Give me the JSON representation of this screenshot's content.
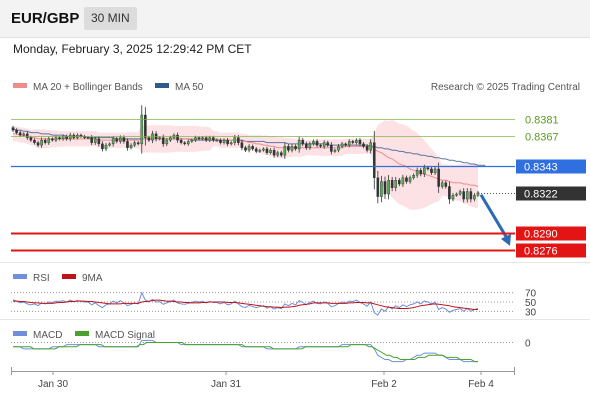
{
  "header": {
    "symbol": "EUR/GBP",
    "timeframe": "30 MIN"
  },
  "timestamp": "Monday, February 3, 2025 12:29:42 PM CET",
  "attribution": "Research © 2025 Trading Central",
  "colors": {
    "ma20": "#f08c8c",
    "bollinger_fill": "#fbd7dc",
    "ma50": "#2e5a8f",
    "up": "#2a2a2a",
    "down": "#2a2a2a",
    "green": "#7cb342",
    "blue_level": "#2f6fe0",
    "red_level": "#e31414",
    "current": "#333333",
    "arrow": "#2c6ab4",
    "rsi": "#6f90d8",
    "rsi_ma": "#c0121a",
    "macd": "#6f90d8",
    "macd_signal": "#4aa12f"
  },
  "chart_data": [
    {
      "type": "candlestick",
      "legend": [
        {
          "name": "MA 20 + Bollinger Bands",
          "color": "#f08c8c"
        },
        {
          "name": "MA 50",
          "color": "#2e5a8f"
        }
      ],
      "ylim": [
        0.827,
        0.8396
      ],
      "x_ticks": [
        "Jan 30",
        "Jan 31",
        "Feb 2",
        "Feb 4"
      ],
      "levels": [
        {
          "value": 0.8381,
          "label": "0.8381",
          "kind": "resistance",
          "color": "#7cb342"
        },
        {
          "value": 0.8367,
          "label": "0.8367",
          "kind": "resistance",
          "color": "#7cb342"
        },
        {
          "value": 0.8343,
          "label": "0.8343",
          "kind": "pivot",
          "color": "#2f6fe0"
        },
        {
          "value": 0.8322,
          "label": "0.8322",
          "kind": "current",
          "color": "#333333"
        },
        {
          "value": 0.829,
          "label": "0.8290",
          "kind": "support",
          "color": "#e31414"
        },
        {
          "value": 0.8276,
          "label": "0.8276",
          "kind": "support",
          "color": "#e31414"
        }
      ],
      "candles_close": [
        0.8372,
        0.837,
        0.8368,
        0.8369,
        0.8366,
        0.8364,
        0.8362,
        0.836,
        0.8364,
        0.8362,
        0.8365,
        0.8364,
        0.8366,
        0.8365,
        0.8367,
        0.8365,
        0.8368,
        0.8366,
        0.8368,
        0.8367,
        0.8366,
        0.8366,
        0.8362,
        0.8365,
        0.8361,
        0.8357,
        0.836,
        0.8361,
        0.8365,
        0.8363,
        0.8366,
        0.8363,
        0.8358,
        0.836,
        0.8362,
        0.8361,
        0.8384,
        0.8366,
        0.8364,
        0.8369,
        0.8365,
        0.8366,
        0.8361,
        0.8364,
        0.8366,
        0.8368,
        0.8364,
        0.8362,
        0.8361,
        0.8363,
        0.8364,
        0.8366,
        0.8365,
        0.8366,
        0.8364,
        0.8366,
        0.8364,
        0.8364,
        0.8362,
        0.8364,
        0.8361,
        0.8362,
        0.8366,
        0.8362,
        0.8358,
        0.8356,
        0.8359,
        0.8357,
        0.8355,
        0.8356,
        0.8357,
        0.8354,
        0.8356,
        0.8352,
        0.8354,
        0.8352,
        0.8359,
        0.8356,
        0.8359,
        0.8357,
        0.8364,
        0.8361,
        0.8358,
        0.8361,
        0.8363,
        0.836,
        0.8359,
        0.8362,
        0.836,
        0.8355,
        0.8356,
        0.8359,
        0.8361,
        0.836,
        0.8363,
        0.8362,
        0.8364,
        0.8361,
        0.8359,
        0.8356,
        0.8362,
        0.8334,
        0.8319,
        0.8331,
        0.8321,
        0.8332,
        0.8326,
        0.8332,
        0.8329,
        0.8334,
        0.8331,
        0.8334,
        0.8336,
        0.834,
        0.8337,
        0.8342,
        0.8341,
        0.8338,
        0.8341,
        0.8327,
        0.833,
        0.8327,
        0.8317,
        0.832,
        0.8321,
        0.8323,
        0.8317,
        0.8323,
        0.8317,
        0.832,
        0.8322
      ],
      "ma20": [
        0.8369,
        0.8369,
        0.8368,
        0.8368,
        0.8367,
        0.8366,
        0.8366,
        0.8365,
        0.8365,
        0.8365,
        0.8365,
        0.8365,
        0.8365,
        0.8365,
        0.8365,
        0.8365,
        0.8365,
        0.8365,
        0.8365,
        0.8365,
        0.8365,
        0.8365,
        0.8365,
        0.8365,
        0.8364,
        0.8364,
        0.8364,
        0.8364,
        0.8364,
        0.8364,
        0.8364,
        0.8364,
        0.8364,
        0.8364,
        0.8364,
        0.8364,
        0.8365,
        0.8365,
        0.8365,
        0.8365,
        0.8365,
        0.8365,
        0.8365,
        0.8365,
        0.8365,
        0.8365,
        0.8365,
        0.8365,
        0.8365,
        0.8365,
        0.8365,
        0.8365,
        0.8365,
        0.8365,
        0.8365,
        0.8365,
        0.8365,
        0.8365,
        0.8364,
        0.8364,
        0.8364,
        0.8364,
        0.8364,
        0.8364,
        0.8363,
        0.8363,
        0.8362,
        0.8362,
        0.8361,
        0.8361,
        0.836,
        0.836,
        0.8359,
        0.8359,
        0.8358,
        0.8358,
        0.8358,
        0.8358,
        0.8358,
        0.8358,
        0.8358,
        0.8358,
        0.8358,
        0.8358,
        0.8358,
        0.8358,
        0.8358,
        0.8358,
        0.8358,
        0.8358,
        0.8358,
        0.8358,
        0.8358,
        0.8359,
        0.8359,
        0.8359,
        0.8359,
        0.8359,
        0.8359,
        0.8359,
        0.8359,
        0.8357,
        0.8355,
        0.8354,
        0.8352,
        0.835,
        0.8349,
        0.8347,
        0.8345,
        0.8344,
        0.8343,
        0.8341,
        0.834,
        0.8339,
        0.8338,
        0.8337,
        0.8336,
        0.8335,
        0.8334,
        0.8333,
        0.8332,
        0.8332,
        0.8331,
        0.833,
        0.833,
        0.833,
        0.8329,
        0.8329,
        0.8328,
        0.8328,
        0.8327
      ],
      "ma50": [
        0.8373,
        0.8372,
        0.8372,
        0.8371,
        0.8371,
        0.837,
        0.837,
        0.837,
        0.8369,
        0.8369,
        0.8369,
        0.8368,
        0.8368,
        0.8368,
        0.8368,
        0.8367,
        0.8367,
        0.8367,
        0.8367,
        0.8367,
        0.8367,
        0.8366,
        0.8366,
        0.8366,
        0.8366,
        0.8366,
        0.8366,
        0.8366,
        0.8366,
        0.8365,
        0.8365,
        0.8365,
        0.8365,
        0.8365,
        0.8365,
        0.8365,
        0.8365,
        0.8365,
        0.8365,
        0.8365,
        0.8365,
        0.8365,
        0.8365,
        0.8365,
        0.8365,
        0.8365,
        0.8365,
        0.8365,
        0.8365,
        0.8365,
        0.8364,
        0.8364,
        0.8364,
        0.8364,
        0.8364,
        0.8364,
        0.8364,
        0.8364,
        0.8364,
        0.8364,
        0.8364,
        0.8364,
        0.8364,
        0.8364,
        0.8364,
        0.8363,
        0.8363,
        0.8363,
        0.8363,
        0.8363,
        0.8363,
        0.8362,
        0.8362,
        0.8362,
        0.8362,
        0.8362,
        0.8362,
        0.8361,
        0.8361,
        0.8361,
        0.8361,
        0.8361,
        0.8361,
        0.8361,
        0.8361,
        0.8361,
        0.8361,
        0.8361,
        0.836,
        0.836,
        0.836,
        0.836,
        0.836,
        0.836,
        0.836,
        0.836,
        0.836,
        0.836,
        0.836,
        0.836,
        0.8359,
        0.8359,
        0.8358,
        0.8358,
        0.8357,
        0.8357,
        0.8356,
        0.8356,
        0.8355,
        0.8355,
        0.8354,
        0.8354,
        0.8353,
        0.8353,
        0.8352,
        0.8352,
        0.8351,
        0.8351,
        0.835,
        0.835,
        0.8349,
        0.8349,
        0.8348,
        0.8348,
        0.8347,
        0.8347,
        0.8346,
        0.8346,
        0.8345,
        0.8345,
        0.8344,
        0.8344,
        0.8344
      ]
    },
    {
      "type": "line",
      "name": "RSI panel",
      "legend": [
        {
          "name": "RSI",
          "color": "#6f90d8"
        },
        {
          "name": "9MA",
          "color": "#c0121a"
        }
      ],
      "ylim": [
        20,
        80
      ],
      "y_ticks": [
        70,
        50,
        30
      ],
      "series": [
        {
          "name": "RSI",
          "values": [
            55,
            52,
            48,
            50,
            46,
            44,
            46,
            42,
            48,
            46,
            50,
            49,
            52,
            51,
            53,
            50,
            54,
            51,
            53,
            52,
            50,
            50,
            44,
            48,
            42,
            38,
            44,
            46,
            52,
            48,
            53,
            48,
            42,
            45,
            48,
            46,
            70,
            54,
            50,
            56,
            50,
            51,
            45,
            48,
            51,
            54,
            48,
            46,
            45,
            47,
            49,
            52,
            50,
            52,
            48,
            51,
            49,
            49,
            46,
            49,
            44,
            46,
            52,
            46,
            40,
            38,
            43,
            40,
            38,
            40,
            42,
            37,
            40,
            35,
            38,
            36,
            46,
            42,
            47,
            44,
            53,
            49,
            44,
            49,
            52,
            47,
            46,
            50,
            47,
            40,
            42,
            47,
            50,
            48,
            52,
            51,
            54,
            49,
            46,
            41,
            50,
            27,
            22,
            35,
            30,
            40,
            35,
            42,
            38,
            44,
            40,
            44,
            46,
            50,
            46,
            52,
            50,
            46,
            50,
            34,
            38,
            35,
            28,
            32,
            34,
            36,
            30,
            36,
            30,
            34,
            36
          ]
        },
        {
          "name": "9MA",
          "values": [
            52,
            52,
            51,
            51,
            50,
            49,
            48,
            48,
            47,
            47,
            47,
            47,
            48,
            49,
            49,
            50,
            51,
            51,
            52,
            52,
            52,
            51,
            51,
            50,
            49,
            48,
            47,
            46,
            46,
            46,
            46,
            47,
            47,
            47,
            47,
            47,
            50,
            51,
            52,
            53,
            54,
            54,
            53,
            52,
            52,
            51,
            50,
            50,
            49,
            49,
            48,
            48,
            48,
            49,
            49,
            50,
            50,
            50,
            50,
            50,
            49,
            49,
            49,
            48,
            47,
            46,
            45,
            44,
            43,
            42,
            41,
            40,
            40,
            39,
            39,
            38,
            39,
            39,
            40,
            41,
            43,
            44,
            45,
            46,
            48,
            48,
            48,
            48,
            48,
            47,
            47,
            47,
            47,
            47,
            48,
            48,
            49,
            49,
            49,
            48,
            48,
            46,
            44,
            42,
            40,
            39,
            38,
            37,
            36,
            36,
            36,
            37,
            38,
            40,
            42,
            43,
            44,
            45,
            46,
            45,
            44,
            43,
            42,
            40,
            39,
            38,
            37,
            36,
            35,
            34,
            34
          ]
        }
      ]
    },
    {
      "type": "line",
      "name": "MACD panel",
      "legend": [
        {
          "name": "MACD",
          "color": "#6f90d8"
        },
        {
          "name": "MACD Signal",
          "color": "#4aa12f"
        }
      ],
      "ylim": [
        -0.0012,
        0.0004
      ],
      "y_ticks": [
        0
      ],
      "y_tick_labels": [
        "0"
      ],
      "series": [
        {
          "name": "MACD",
          "values": [
            -0.0002,
            -0.0002,
            -0.0002,
            -0.0003,
            -0.0003,
            -0.0003,
            -0.0003,
            -0.0003,
            -0.0003,
            -0.0003,
            -0.0003,
            -0.0002,
            -0.0002,
            -0.0002,
            -0.0002,
            -0.0001,
            -0.0001,
            -0.0001,
            -0.0001,
            -0.0001,
            -0.0001,
            -0.0001,
            -0.0001,
            -0.0001,
            -0.0002,
            -0.0002,
            -0.0002,
            -0.0002,
            -0.0002,
            -0.0002,
            -0.0002,
            -0.0002,
            -0.0002,
            -0.0002,
            -0.0002,
            -0.0002,
            0.0001,
            0.0001,
            0.0001,
            0.0001,
            0.0,
            0.0,
            0.0,
            0.0,
            0.0,
            0.0,
            0.0,
            -0.0001,
            -0.0001,
            -0.0001,
            -0.0001,
            -0.0001,
            -0.0001,
            -0.0001,
            -0.0001,
            -0.0001,
            -0.0001,
            -0.0001,
            -0.0001,
            -0.0001,
            -0.0001,
            -0.0001,
            -0.0001,
            -0.0001,
            -0.0002,
            -0.0002,
            -0.0002,
            -0.0002,
            -0.0002,
            -0.0002,
            -0.0002,
            -0.0003,
            -0.0003,
            -0.0003,
            -0.0003,
            -0.0003,
            -0.0003,
            -0.0003,
            -0.0003,
            -0.0003,
            -0.0002,
            -0.0002,
            -0.0002,
            -0.0002,
            -0.0002,
            -0.0002,
            -0.0002,
            -0.0002,
            -0.0002,
            -0.0002,
            -0.0002,
            -0.0002,
            -0.0001,
            -0.0001,
            -0.0001,
            -0.0001,
            -0.0001,
            -0.0001,
            -0.0001,
            -0.0001,
            -0.0001,
            -0.0003,
            -0.0006,
            -0.0007,
            -0.0008,
            -0.0008,
            -0.0009,
            -0.0009,
            -0.0009,
            -0.0009,
            -0.0008,
            -0.0008,
            -0.0007,
            -0.0006,
            -0.0006,
            -0.0005,
            -0.0005,
            -0.0005,
            -0.0005,
            -0.0006,
            -0.0006,
            -0.0007,
            -0.0008,
            -0.0008,
            -0.0008,
            -0.0008,
            -0.0009,
            -0.0009,
            -0.0009,
            -0.0009,
            -0.0009
          ]
        },
        {
          "name": "MACD Signal",
          "values": [
            -0.0002,
            -0.0002,
            -0.0002,
            -0.0002,
            -0.0002,
            -0.0002,
            -0.0003,
            -0.0003,
            -0.0003,
            -0.0003,
            -0.0003,
            -0.0003,
            -0.0003,
            -0.0002,
            -0.0002,
            -0.0002,
            -0.0002,
            -0.0002,
            -0.0002,
            -0.0001,
            -0.0001,
            -0.0001,
            -0.0001,
            -0.0001,
            -0.0001,
            -0.0001,
            -0.0002,
            -0.0002,
            -0.0002,
            -0.0002,
            -0.0002,
            -0.0002,
            -0.0002,
            -0.0002,
            -0.0002,
            -0.0002,
            -0.0001,
            -0.0001,
            0.0,
            0.0,
            0.0,
            0.0,
            0.0,
            0.0,
            0.0,
            0.0,
            0.0,
            0.0,
            0.0,
            -0.0001,
            -0.0001,
            -0.0001,
            -0.0001,
            -0.0001,
            -0.0001,
            -0.0001,
            -0.0001,
            -0.0001,
            -0.0001,
            -0.0001,
            -0.0001,
            -0.0001,
            -0.0001,
            -0.0001,
            -0.0001,
            -0.0001,
            -0.0002,
            -0.0002,
            -0.0002,
            -0.0002,
            -0.0002,
            -0.0002,
            -0.0002,
            -0.0002,
            -0.0003,
            -0.0003,
            -0.0003,
            -0.0003,
            -0.0003,
            -0.0003,
            -0.0003,
            -0.0003,
            -0.0003,
            -0.0002,
            -0.0002,
            -0.0002,
            -0.0002,
            -0.0002,
            -0.0002,
            -0.0002,
            -0.0002,
            -0.0002,
            -0.0002,
            -0.0002,
            -0.0002,
            -0.0002,
            -0.0001,
            -0.0001,
            -0.0001,
            -0.0001,
            -0.0001,
            -0.0002,
            -0.0002,
            -0.0003,
            -0.0004,
            -0.0005,
            -0.0006,
            -0.0006,
            -0.0007,
            -0.0007,
            -0.0008,
            -0.0008,
            -0.0008,
            -0.0008,
            -0.0008,
            -0.0007,
            -0.0007,
            -0.0007,
            -0.0006,
            -0.0006,
            -0.0006,
            -0.0006,
            -0.0006,
            -0.0007,
            -0.0007,
            -0.0007,
            -0.0007,
            -0.0008,
            -0.0008,
            -0.0008,
            -0.0008,
            -0.0009,
            -0.0009
          ]
        }
      ]
    }
  ]
}
